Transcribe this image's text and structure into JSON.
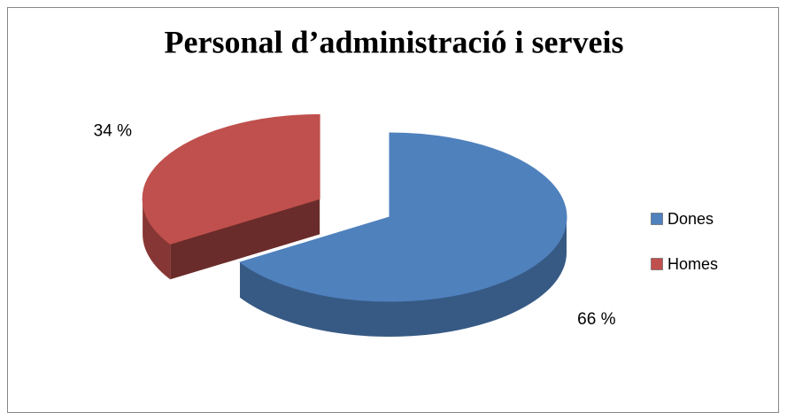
{
  "chart_data": {
    "type": "pie",
    "title": "Personal d’administració i serveis",
    "categories": [
      "Dones",
      "Homes"
    ],
    "values": [
      66,
      34
    ],
    "value_labels": [
      "66 %",
      "34 %"
    ],
    "colors": [
      "#4f81bd",
      "#c0504d"
    ],
    "legend": "right"
  }
}
